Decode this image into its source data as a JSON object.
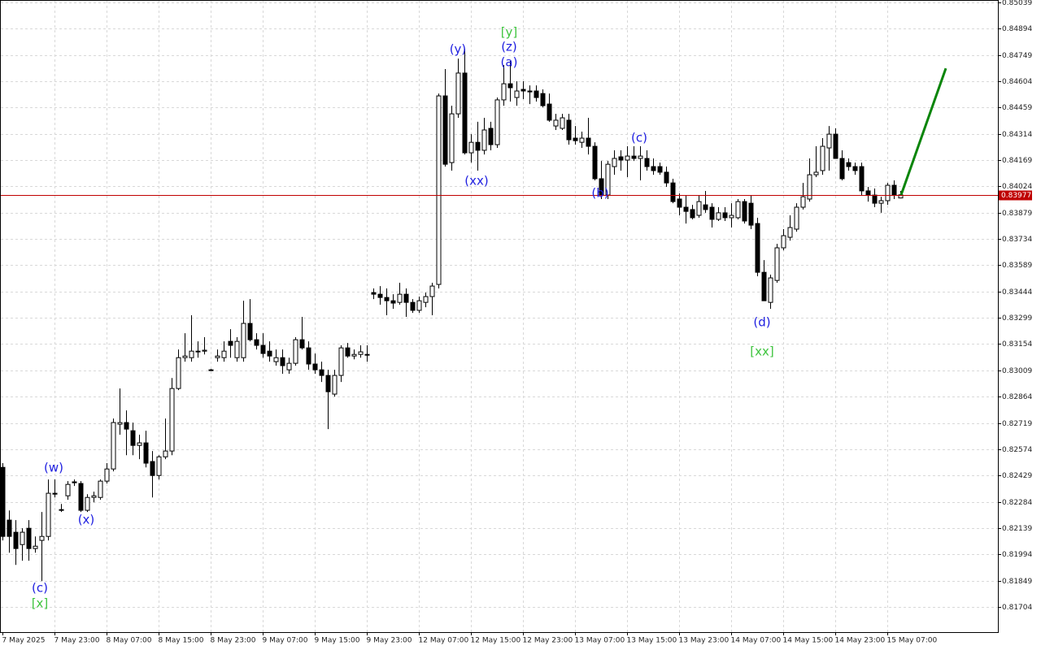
{
  "chart_data": {
    "type": "candlestick",
    "categories": [
      "7 May 2025",
      null,
      null,
      null,
      null,
      null,
      null,
      null,
      "7 May 23:00",
      null,
      null,
      null,
      null,
      null,
      null,
      null,
      "8 May 07:00",
      null,
      null,
      null,
      null,
      null,
      null,
      null,
      "8 May 15:00",
      null,
      null,
      null,
      null,
      null,
      null,
      null,
      "8 May 23:00",
      null,
      null,
      null,
      null,
      null,
      null,
      null,
      "9 May 07:00",
      null,
      null,
      null,
      null,
      null,
      null,
      null,
      "9 May 15:00",
      null,
      null,
      null,
      null,
      null,
      null,
      null,
      "9 May 23:00",
      null,
      null,
      null,
      null,
      null,
      null,
      null,
      "12 May 07:00",
      null,
      null,
      null,
      null,
      null,
      null,
      null,
      "12 May 15:00",
      null,
      null,
      null,
      null,
      null,
      null,
      null,
      "12 May 23:00",
      null,
      null,
      null,
      null,
      null,
      null,
      null,
      "13 May 07:00",
      null,
      null,
      null,
      null,
      null,
      null,
      null,
      "13 May 15:00",
      null,
      null,
      null,
      null,
      null,
      null,
      null,
      "13 May 23:00",
      null,
      null,
      null,
      null,
      null,
      null,
      null,
      "14 May 07:00",
      null,
      null,
      null,
      null,
      null,
      null,
      null,
      "14 May 15:00",
      null,
      null,
      null,
      null,
      null,
      null,
      null,
      "14 May 23:00",
      null,
      null,
      null,
      null,
      null,
      null,
      null,
      "15 May 07:00",
      null,
      null
    ],
    "open": [
      0.82474,
      0.82183,
      0.82116,
      0.82048,
      0.82138,
      0.82026,
      0.82071,
      0.82093,
      0.82331,
      0.82241,
      0.82317,
      0.82394,
      0.82385,
      0.82237,
      0.82308,
      0.82308,
      0.82398,
      0.82465,
      0.82712,
      0.82721,
      0.82676,
      0.82595,
      0.82609,
      0.82506,
      0.82429,
      0.82532,
      0.82564,
      0.82909,
      0.83079,
      0.83079,
      0.83111,
      0.83115,
      0.83012,
      0.83079,
      0.83079,
      0.83169,
      0.83079,
      0.83079,
      0.83268,
      0.83178,
      0.83147,
      0.83115,
      0.83057,
      0.83079,
      0.83012,
      0.83048,
      0.83178,
      0.83133,
      0.83044,
      0.83012,
      0.82981,
      0.82878,
      0.82981,
      0.83133,
      0.83088,
      0.83097,
      0.83093,
      0.83438,
      0.83429,
      0.83411,
      0.83393,
      0.83384,
      0.83429,
      0.83384,
      0.8334,
      0.83384,
      0.83416,
      0.83483,
      0.84523,
      0.84155,
      0.84424,
      0.84649,
      0.84209,
      0.84267,
      0.84223,
      0.84344,
      0.84254,
      0.84501,
      0.8459,
      0.84514,
      0.84559,
      0.8455,
      0.8455,
      0.84536,
      0.84478,
      0.84357,
      0.84344,
      0.84389,
      0.8429,
      0.84267,
      0.8429,
      0.84245,
      0.84066,
      0.83976,
      0.84133,
      0.84187,
      0.84169,
      0.84191,
      0.84178,
      0.84178,
      0.84133,
      0.84133,
      0.84102,
      0.84043,
      0.83954,
      0.83909,
      0.83896,
      0.83864,
      0.83922,
      0.83909,
      0.83842,
      0.83878,
      0.83851,
      0.83851,
      0.8394,
      0.83931,
      0.83819,
      0.8355,
      0.83384,
      0.83505,
      0.83685,
      0.83743,
      0.83788,
      0.83909,
      0.83954,
      0.84088,
      0.84111,
      0.84236,
      0.84312,
      0.84178,
      0.84155,
      0.84133,
      0.84133,
      0.83999,
      0.83976,
      0.83931,
      0.83945,
      0.8403,
      0.8396
    ],
    "high": [
      0.82497,
      0.82236,
      0.82183,
      0.82138,
      0.82183,
      0.82093,
      0.82228,
      0.82407,
      0.82407,
      0.82272,
      0.82398,
      0.82407,
      0.82398,
      0.82326,
      0.8234,
      0.82407,
      0.82497,
      0.82743,
      0.82909,
      0.82788,
      0.82721,
      0.82654,
      0.82676,
      0.82564,
      0.82541,
      0.82743,
      0.82967,
      0.83124,
      0.83214,
      0.83313,
      0.83169,
      0.83192,
      0.83017,
      0.83124,
      0.83169,
      0.83236,
      0.83192,
      0.83393,
      0.83402,
      0.83214,
      0.83214,
      0.83169,
      0.83124,
      0.83124,
      0.83079,
      0.83192,
      0.83304,
      0.83169,
      0.83102,
      0.83057,
      0.83012,
      0.83012,
      0.83147,
      0.8316,
      0.83124,
      0.83147,
      0.83147,
      0.83461,
      0.83474,
      0.83461,
      0.83429,
      0.83492,
      0.83461,
      0.83402,
      0.83416,
      0.83438,
      0.83492,
      0.84536,
      0.84671,
      0.84469,
      0.84729,
      0.84783,
      0.84312,
      0.8438,
      0.84402,
      0.8438,
      0.84514,
      0.84693,
      0.84716,
      0.84604,
      0.84604,
      0.84581,
      0.84581,
      0.84559,
      0.84536,
      0.84424,
      0.84424,
      0.84424,
      0.84357,
      0.84326,
      0.84402,
      0.84267,
      0.84164,
      0.84164,
      0.84223,
      0.84223,
      0.84245,
      0.84245,
      0.84245,
      0.84223,
      0.84178,
      0.84155,
      0.84133,
      0.84066,
      0.83985,
      0.83976,
      0.83922,
      0.83976,
      0.83999,
      0.83931,
      0.83909,
      0.83909,
      0.83931,
      0.83954,
      0.83954,
      0.83976,
      0.83851,
      0.83617,
      0.83537,
      0.83707,
      0.83788,
      0.83864,
      0.83931,
      0.84043,
      0.84178,
      0.84245,
      0.8429,
      0.84357,
      0.84344,
      0.84223,
      0.84178,
      0.84155,
      0.84155,
      0.84021,
      0.84012,
      0.83967,
      0.84043,
      0.84057,
      0.83999
    ],
    "low": [
      0.82071,
      0.82003,
      0.81936,
      0.81959,
      0.81959,
      0.82003,
      0.81847,
      0.82071,
      0.82308,
      0.82228,
      0.82295,
      0.82371,
      0.82228,
      0.82228,
      0.82281,
      0.82295,
      0.82385,
      0.82452,
      0.82654,
      0.82541,
      0.82541,
      0.82519,
      0.82474,
      0.82308,
      0.82407,
      0.82519,
      0.82541,
      0.829,
      0.83057,
      0.83057,
      0.83079,
      0.83097,
      0.83008,
      0.83057,
      0.83057,
      0.83079,
      0.83057,
      0.83057,
      0.83169,
      0.83124,
      0.83079,
      0.83057,
      0.83035,
      0.8299,
      0.8299,
      0.83035,
      0.83124,
      0.83012,
      0.8299,
      0.82945,
      0.82685,
      0.82864,
      0.82945,
      0.83079,
      0.8307,
      0.83079,
      0.83057,
      0.83402,
      0.83371,
      0.83313,
      0.83348,
      0.83371,
      0.83304,
      0.83326,
      0.83326,
      0.83357,
      0.83313,
      0.83461,
      0.84133,
      0.84111,
      0.84402,
      0.842,
      0.84155,
      0.84111,
      0.842,
      0.84223,
      0.84236,
      0.84469,
      0.84492,
      0.84469,
      0.84505,
      0.84478,
      0.84492,
      0.8446,
      0.8438,
      0.84335,
      0.84335,
      0.84254,
      0.84254,
      0.84236,
      0.842,
      0.84057,
      0.83954,
      0.83954,
      0.84088,
      0.84111,
      0.84075,
      0.84164,
      0.84057,
      0.84111,
      0.84088,
      0.84088,
      0.84021,
      0.83931,
      0.83864,
      0.83819,
      0.83842,
      0.83851,
      0.83878,
      0.83797,
      0.83833,
      0.83833,
      0.83797,
      0.83842,
      0.83819,
      0.83788,
      0.83528,
      0.83393,
      0.83348,
      0.83492,
      0.83671,
      0.83725,
      0.83774,
      0.83896,
      0.8394,
      0.84075,
      0.84088,
      0.84111,
      0.84178,
      0.84057,
      0.84111,
      0.84088,
      0.83976,
      0.8394,
      0.83909,
      0.83878,
      0.83922,
      0.83954,
      0.83958
    ],
    "close": [
      0.82093,
      0.82093,
      0.82026,
      0.82116,
      0.82026,
      0.82039,
      0.82093,
      0.82331,
      0.82326,
      0.82237,
      0.8238,
      0.82389,
      0.82237,
      0.82308,
      0.82317,
      0.82398,
      0.82465,
      0.82721,
      0.82721,
      0.82685,
      0.82595,
      0.82609,
      0.82497,
      0.82429,
      0.82532,
      0.82564,
      0.82909,
      0.83079,
      0.83088,
      0.83115,
      0.83115,
      0.8312,
      0.83012,
      0.83088,
      0.83115,
      0.83147,
      0.83169,
      0.83268,
      0.83178,
      0.83147,
      0.83102,
      0.83088,
      0.83079,
      0.83035,
      0.83048,
      0.83178,
      0.83133,
      0.83044,
      0.83012,
      0.82981,
      0.82891,
      0.82981,
      0.83133,
      0.83088,
      0.83097,
      0.83111,
      0.83097,
      0.83429,
      0.83411,
      0.83393,
      0.8338,
      0.83429,
      0.83384,
      0.8334,
      0.83393,
      0.83416,
      0.83474,
      0.84523,
      0.84146,
      0.84424,
      0.84649,
      0.84209,
      0.84267,
      0.84223,
      0.84335,
      0.84254,
      0.84501,
      0.8459,
      0.84568,
      0.8455,
      0.8455,
      0.84545,
      0.84514,
      0.84469,
      0.84389,
      0.84389,
      0.84402,
      0.84281,
      0.84276,
      0.8429,
      0.84245,
      0.84066,
      0.83976,
      0.84146,
      0.84178,
      0.84169,
      0.84191,
      0.84178,
      0.84191,
      0.84133,
      0.84111,
      0.84102,
      0.84043,
      0.8394,
      0.83909,
      0.83886,
      0.83851,
      0.8394,
      0.83896,
      0.83842,
      0.83878,
      0.83851,
      0.83864,
      0.8394,
      0.83833,
      0.8381,
      0.8355,
      0.83393,
      0.83519,
      0.83685,
      0.83752,
      0.83797,
      0.83909,
      0.83967,
      0.84088,
      0.84102,
      0.84245,
      0.84312,
      0.84178,
      0.84066,
      0.84133,
      0.84111,
      0.83999,
      0.83976,
      0.83931,
      0.83945,
      0.8403,
      0.83976,
      0.83977
    ],
    "bull_color": "#ffffff",
    "bear_color": "#000000",
    "ylim": [
      0.81565,
      0.85052
    ],
    "yticks": [
      0.85039,
      0.84894,
      0.84749,
      0.84604,
      0.84459,
      0.84314,
      0.84169,
      0.84024,
      0.83879,
      0.83734,
      0.83589,
      0.83444,
      0.83299,
      0.83154,
      0.83009,
      0.82864,
      0.82719,
      0.82574,
      0.82429,
      0.82284,
      0.82139,
      0.81994,
      0.81849,
      0.81704
    ],
    "grid": true,
    "current_price": 0.83977,
    "price_line_color": "#c00000",
    "projection_line": {
      "color": "#0a850a",
      "start": 0.83977,
      "end": 0.84675
    },
    "annotations": [
      {
        "text": "(w)",
        "color": "#1f1fe0"
      },
      {
        "text": "(x)",
        "color": "#1f1fe0"
      },
      {
        "text": "(c)",
        "color": "#1f1fe0"
      },
      {
        "text": "[x]",
        "color": "#3ec43e"
      },
      {
        "text": "(y)",
        "color": "#1f1fe0"
      },
      {
        "text": "[y]",
        "color": "#3ec43e"
      },
      {
        "text": "(z)",
        "color": "#1f1fe0"
      },
      {
        "text": "(a)",
        "color": "#1f1fe0"
      },
      {
        "text": "(xx)",
        "color": "#1f1fe0"
      },
      {
        "text": "(b)",
        "color": "#1f1fe0"
      },
      {
        "text": "(c)",
        "color": "#1f1fe0"
      },
      {
        "text": "(d)",
        "color": "#1f1fe0"
      },
      {
        "text": "[xx]",
        "color": "#3ec43e"
      }
    ]
  }
}
